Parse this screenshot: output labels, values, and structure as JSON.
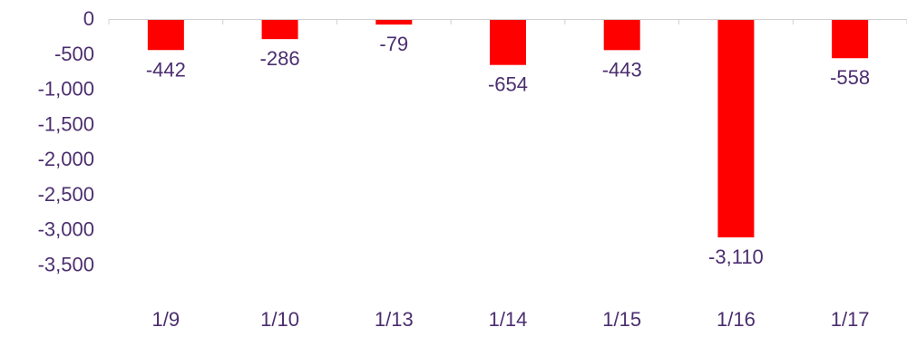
{
  "chart_data": {
    "type": "bar",
    "categories": [
      "1/9",
      "1/10",
      "1/13",
      "1/14",
      "1/15",
      "1/16",
      "1/17"
    ],
    "values": [
      -442,
      -286,
      -79,
      -654,
      -443,
      -3110,
      -558
    ],
    "data_labels": [
      "-442",
      "-286",
      "-79",
      "-654",
      "-443",
      "-3,110",
      "-558"
    ],
    "y_ticks": [
      0,
      -500,
      -1000,
      -1500,
      -2000,
      -2500,
      -3000,
      -3500
    ],
    "y_tick_labels": [
      "0",
      "-500",
      "-1,000",
      "-1,500",
      "-2,000",
      "-2,500",
      "-3,000",
      "-3,500"
    ],
    "ylim": [
      -3500,
      0
    ],
    "title": "",
    "xlabel": "",
    "ylabel": "",
    "grid": false,
    "legend": false,
    "colors": {
      "bar": "#ff0000",
      "text": "#4b2e6f",
      "axis": "#d0d0d0"
    }
  }
}
